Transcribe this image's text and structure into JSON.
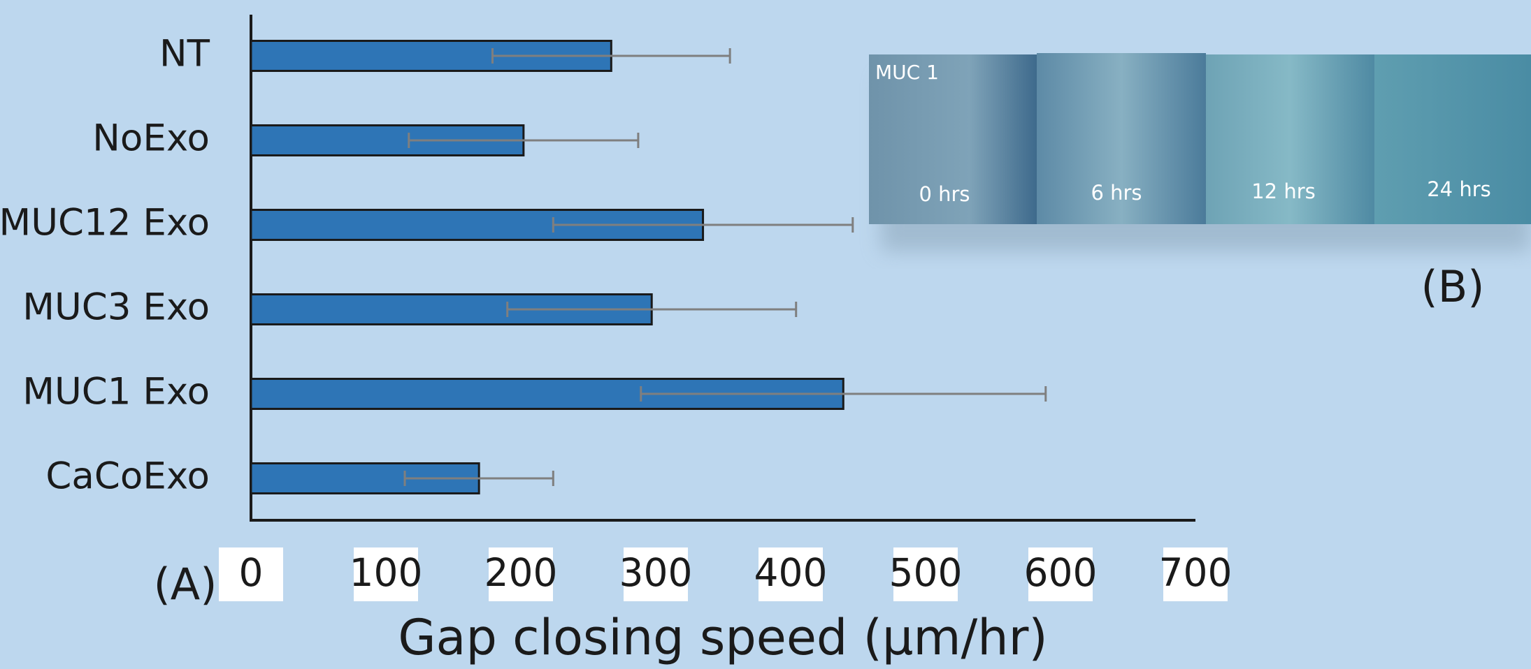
{
  "chart_data": {
    "type": "bar",
    "orientation": "horizontal",
    "categories": [
      "NT",
      "NoExo",
      "MUC12 Exo",
      "MUC3 Exo",
      "MUC1 Exo",
      "CaCoExo"
    ],
    "values": [
      267,
      202,
      335,
      297,
      439,
      169
    ],
    "errors": [
      88,
      85,
      111,
      107,
      150,
      55
    ],
    "color": "#2e75b6",
    "error_color": "#7f7f7f",
    "xlim": [
      0,
      700
    ],
    "xticks": [
      0,
      100,
      200,
      300,
      400,
      500,
      600,
      700
    ],
    "xlabel": "Gap closing speed (µm/hr)",
    "panel_label": "(A)"
  },
  "panel_b": {
    "panel_label": "(B)",
    "image_label": "MUC 1",
    "time_labels": [
      "0 hrs",
      "6 hrs",
      "12 hrs",
      "24 hrs"
    ]
  }
}
